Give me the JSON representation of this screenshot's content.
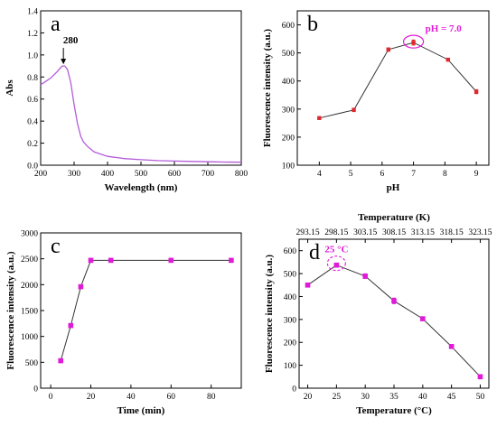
{
  "chart_data": [
    {
      "id": "a",
      "type": "line",
      "panel_label": "a",
      "xlabel": "Wavelength (nm)",
      "ylabel": "Abs",
      "xlim": [
        200,
        800
      ],
      "ylim": [
        0,
        1.4
      ],
      "xticks": [
        "200",
        "300",
        "400",
        "500",
        "600",
        "700",
        "800"
      ],
      "yticks": [
        "0.0",
        "0.2",
        "0.4",
        "0.6",
        "0.8",
        "1.0",
        "1.2",
        "1.4"
      ],
      "line_color": "#b45cd9",
      "annotation": {
        "text": "280",
        "x": 268,
        "y": 0.9
      },
      "points": [
        [
          200,
          0.73
        ],
        [
          210,
          0.75
        ],
        [
          220,
          0.77
        ],
        [
          230,
          0.79
        ],
        [
          240,
          0.82
        ],
        [
          250,
          0.85
        ],
        [
          258,
          0.88
        ],
        [
          265,
          0.9
        ],
        [
          272,
          0.9
        ],
        [
          280,
          0.87
        ],
        [
          290,
          0.75
        ],
        [
          300,
          0.55
        ],
        [
          310,
          0.38
        ],
        [
          320,
          0.26
        ],
        [
          328,
          0.21
        ],
        [
          340,
          0.17
        ],
        [
          360,
          0.12
        ],
        [
          380,
          0.1
        ],
        [
          400,
          0.08
        ],
        [
          450,
          0.06
        ],
        [
          500,
          0.05
        ],
        [
          550,
          0.042
        ],
        [
          600,
          0.038
        ],
        [
          650,
          0.034
        ],
        [
          700,
          0.031
        ],
        [
          750,
          0.029
        ],
        [
          800,
          0.027
        ]
      ]
    },
    {
      "id": "b",
      "type": "line",
      "panel_label": "b",
      "xlabel": "pH",
      "ylabel": "Fluorescence intensity (a.u.)",
      "xlim": [
        3.3,
        9.4
      ],
      "ylim": [
        100,
        650
      ],
      "xticks": [
        "4",
        "5",
        "6",
        "7",
        "8",
        "9"
      ],
      "ytick_values": [
        100,
        200,
        300,
        400,
        500,
        600
      ],
      "marker_color": "#e0282f",
      "x": [
        4,
        5.1,
        6.2,
        7.0,
        8.1,
        9.0
      ],
      "y": [
        268,
        297,
        512,
        537,
        476,
        362
      ],
      "yerr": [
        4,
        6,
        6,
        9,
        5,
        7
      ],
      "annotation": {
        "text": "pH = 7.0",
        "x": 7.0,
        "y": 537,
        "color": "#e01bd8"
      }
    },
    {
      "id": "c",
      "type": "line",
      "panel_label": "c",
      "xlabel": "Time (min)",
      "ylabel": "Fluorescence intensity (a.u.)",
      "xlim": [
        -5,
        95
      ],
      "ylim": [
        0,
        3000
      ],
      "xticks": [
        "0",
        "20",
        "40",
        "60",
        "80"
      ],
      "ytick_values": [
        0,
        500,
        1000,
        1500,
        2000,
        2500,
        3000
      ],
      "marker_color": "#e01bd8",
      "x": [
        5,
        10,
        15,
        20,
        30,
        60,
        90
      ],
      "y": [
        530,
        1210,
        1960,
        2470,
        2470,
        2470,
        2470
      ]
    },
    {
      "id": "d",
      "type": "line",
      "panel_label": "d",
      "xlabel": "Temperature (°C)",
      "ylabel": "Fluorescence intensity (a.u.)",
      "top_xlabel": "Temperature (K)",
      "top_xticks": [
        "293.15",
        "298.15",
        "303.15",
        "308.15",
        "313.15",
        "318.15",
        "323.15"
      ],
      "xlim": [
        18.5,
        51.5
      ],
      "ylim": [
        0,
        650
      ],
      "xticks": [
        "20",
        "25",
        "30",
        "35",
        "40",
        "45",
        "50"
      ],
      "ytick_values": [
        0,
        100,
        200,
        300,
        400,
        500,
        600
      ],
      "marker_color": "#e01bd8",
      "x": [
        20,
        25,
        30,
        35,
        40,
        45,
        50
      ],
      "y": [
        450,
        537,
        489,
        381,
        303,
        182,
        50
      ],
      "yerr": [
        5,
        5,
        10,
        12,
        6,
        6,
        9
      ],
      "annotation": {
        "text": "25 °C",
        "x": 25,
        "y": 537,
        "color": "#e01bd8"
      }
    }
  ]
}
